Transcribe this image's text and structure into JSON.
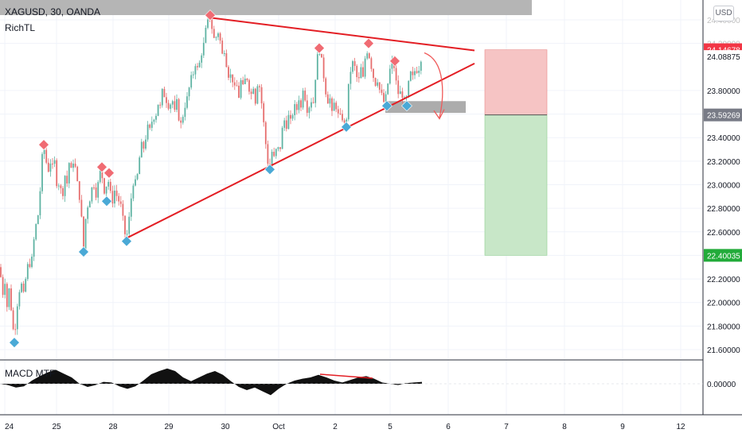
{
  "header": {
    "symbol": "XAGUSD, 30, OANDA",
    "indicator": "RichTL",
    "currency": "USD"
  },
  "macd_panel": {
    "label": "MACD MTF",
    "value_label": "0.00000"
  },
  "colors": {
    "bull": "#5fb3a3",
    "bear": "#e66e6e",
    "trendline": "#e31e24",
    "diamond_red": "#f06b73",
    "diamond_blue": "#4aa9d6",
    "zone_gray": "#9e9e9e",
    "stop_zone": "#f6c4c4",
    "target_zone": "#c8e7c8",
    "price_red": "#f23645",
    "price_gray": "#787b86",
    "price_green": "#22ab3a",
    "grid": "#f0f3fa"
  },
  "chart_data": {
    "type": "candlestick",
    "symbol": "XAGUSD",
    "timeframe": "30",
    "ylim": [
      21.45,
      24.55
    ],
    "y_ticks": [
      "24.40000",
      "24.20000",
      "23.80000",
      "23.60000",
      "23.40000",
      "23.20000",
      "23.00000",
      "22.80000",
      "22.60000",
      "22.40000",
      "22.20000",
      "22.00000",
      "21.80000",
      "21.60000"
    ],
    "x_ticks": [
      "24",
      "25",
      "28",
      "29",
      "30",
      "Oct",
      "2",
      "5",
      "6",
      "7",
      "8",
      "9",
      "12"
    ],
    "price_labels": [
      {
        "text": "24.14678",
        "value": 24.14678,
        "style": "red"
      },
      {
        "text": "24.08875",
        "value": 24.08875,
        "style": "plain"
      },
      {
        "text": "23.59269",
        "value": 23.59269,
        "style": "gray"
      },
      {
        "text": "22.40035",
        "value": 22.40035,
        "style": "green"
      }
    ],
    "price_path": [
      [
        0,
        22.3
      ],
      [
        3,
        22.05
      ],
      [
        6,
        22.2
      ],
      [
        9,
        21.95
      ],
      [
        12,
        22.15
      ],
      [
        15,
        21.85
      ],
      [
        18,
        21.7
      ],
      [
        21,
        21.95
      ],
      [
        24,
        22.1
      ],
      [
        27,
        22.15
      ],
      [
        30,
        22.05
      ],
      [
        33,
        22.25
      ],
      [
        36,
        22.35
      ],
      [
        39,
        22.3
      ],
      [
        42,
        22.5
      ],
      [
        45,
        22.65
      ],
      [
        48,
        22.75
      ],
      [
        51,
        23.0
      ],
      [
        54,
        23.35
      ],
      [
        57,
        23.25
      ],
      [
        60,
        23.1
      ],
      [
        63,
        23.2
      ],
      [
        66,
        23.15
      ],
      [
        69,
        23.2
      ],
      [
        72,
        22.95
      ],
      [
        75,
        23.05
      ],
      [
        78,
        22.85
      ],
      [
        81,
        23.1
      ],
      [
        84,
        23.0
      ],
      [
        87,
        23.2
      ],
      [
        90,
        23.1
      ],
      [
        93,
        23.25
      ],
      [
        96,
        23.05
      ],
      [
        99,
        22.95
      ],
      [
        102,
        22.75
      ],
      [
        105,
        22.45
      ],
      [
        108,
        22.75
      ],
      [
        111,
        22.85
      ],
      [
        114,
        22.9
      ],
      [
        117,
        23.05
      ],
      [
        120,
        22.9
      ],
      [
        123,
        23.0
      ],
      [
        126,
        23.12
      ],
      [
        129,
        23.05
      ],
      [
        132,
        22.9
      ],
      [
        135,
        23.08
      ],
      [
        138,
        22.95
      ],
      [
        141,
        22.85
      ],
      [
        144,
        22.95
      ],
      [
        147,
        22.9
      ],
      [
        150,
        22.85
      ],
      [
        153,
        22.8
      ],
      [
        156,
        22.6
      ],
      [
        159,
        22.55
      ],
      [
        162,
        22.7
      ],
      [
        165,
        22.9
      ],
      [
        168,
        23.05
      ],
      [
        171,
        23.0
      ],
      [
        174,
        23.15
      ],
      [
        177,
        23.35
      ],
      [
        180,
        23.3
      ],
      [
        183,
        23.4
      ],
      [
        186,
        23.5
      ],
      [
        189,
        23.45
      ],
      [
        192,
        23.6
      ],
      [
        195,
        23.55
      ],
      [
        198,
        23.7
      ],
      [
        201,
        23.65
      ],
      [
        204,
        23.8
      ],
      [
        207,
        23.75
      ],
      [
        210,
        23.7
      ],
      [
        213,
        23.65
      ],
      [
        216,
        23.75
      ],
      [
        219,
        23.6
      ],
      [
        222,
        23.7
      ],
      [
        225,
        23.55
      ],
      [
        228,
        23.5
      ],
      [
        231,
        23.65
      ],
      [
        234,
        23.7
      ],
      [
        237,
        23.8
      ],
      [
        240,
        23.9
      ],
      [
        243,
        23.95
      ],
      [
        246,
        24.05
      ],
      [
        249,
        23.95
      ],
      [
        252,
        24.1
      ],
      [
        255,
        24.15
      ],
      [
        258,
        24.3
      ],
      [
        261,
        24.38
      ],
      [
        264,
        24.42
      ],
      [
        267,
        24.3
      ],
      [
        270,
        24.2
      ],
      [
        273,
        24.32
      ],
      [
        276,
        24.25
      ],
      [
        279,
        24.1
      ],
      [
        282,
        24.15
      ],
      [
        285,
        24.0
      ],
      [
        288,
        23.9
      ],
      [
        291,
        23.95
      ],
      [
        294,
        23.8
      ],
      [
        297,
        23.85
      ],
      [
        300,
        23.75
      ],
      [
        303,
        23.9
      ],
      [
        306,
        23.8
      ],
      [
        309,
        23.95
      ],
      [
        312,
        23.85
      ],
      [
        315,
        23.75
      ],
      [
        318,
        23.85
      ],
      [
        321,
        23.7
      ],
      [
        324,
        23.9
      ],
      [
        327,
        23.8
      ],
      [
        330,
        23.6
      ],
      [
        333,
        23.4
      ],
      [
        336,
        23.2
      ],
      [
        339,
        23.15
      ],
      [
        342,
        23.3
      ],
      [
        345,
        23.2
      ],
      [
        348,
        23.35
      ],
      [
        351,
        23.25
      ],
      [
        354,
        23.45
      ],
      [
        357,
        23.55
      ],
      [
        360,
        23.5
      ],
      [
        363,
        23.6
      ],
      [
        366,
        23.5
      ],
      [
        369,
        23.7
      ],
      [
        372,
        23.6
      ],
      [
        375,
        23.75
      ],
      [
        378,
        23.65
      ],
      [
        381,
        23.85
      ],
      [
        384,
        23.7
      ],
      [
        387,
        23.6
      ],
      [
        390,
        23.75
      ],
      [
        393,
        23.65
      ],
      [
        396,
        23.9
      ],
      [
        399,
        24.1
      ],
      [
        402,
        24.15
      ],
      [
        405,
        24.0
      ],
      [
        408,
        23.85
      ],
      [
        411,
        23.7
      ],
      [
        414,
        23.75
      ],
      [
        417,
        23.6
      ],
      [
        420,
        23.7
      ],
      [
        423,
        23.65
      ],
      [
        426,
        23.55
      ],
      [
        429,
        23.6
      ],
      [
        432,
        23.5
      ],
      [
        435,
        23.55
      ],
      [
        438,
        23.85
      ],
      [
        441,
        24.0
      ],
      [
        444,
        24.05
      ],
      [
        447,
        23.95
      ],
      [
        450,
        23.85
      ],
      [
        453,
        24.0
      ],
      [
        456,
        23.9
      ],
      [
        459,
        24.1
      ],
      [
        462,
        24.15
      ],
      [
        465,
        24.05
      ],
      [
        468,
        23.95
      ],
      [
        471,
        23.85
      ],
      [
        474,
        23.9
      ],
      [
        477,
        23.8
      ],
      [
        480,
        23.75
      ],
      [
        483,
        23.68
      ],
      [
        486,
        23.8
      ],
      [
        489,
        23.95
      ],
      [
        492,
        24.05
      ],
      [
        495,
        24.0
      ],
      [
        498,
        23.85
      ],
      [
        501,
        23.75
      ],
      [
        504,
        23.8
      ],
      [
        507,
        23.72
      ],
      [
        510,
        23.7
      ],
      [
        513,
        23.85
      ],
      [
        516,
        23.95
      ],
      [
        519,
        23.9
      ],
      [
        522,
        24.0
      ],
      [
        525,
        23.95
      ],
      [
        528,
        24.05
      ],
      [
        531,
        24.14
      ]
    ],
    "markers": [
      {
        "type": "high",
        "x": 55,
        "y": 23.34
      },
      {
        "type": "low",
        "x": 18,
        "y": 21.66
      },
      {
        "type": "low",
        "x": 105,
        "y": 22.43
      },
      {
        "type": "high",
        "x": 128,
        "y": 23.15
      },
      {
        "type": "high",
        "x": 137,
        "y": 23.1
      },
      {
        "type": "low",
        "x": 134,
        "y": 22.86
      },
      {
        "type": "low",
        "x": 159,
        "y": 22.52
      },
      {
        "type": "high",
        "x": 264,
        "y": 24.44
      },
      {
        "type": "low",
        "x": 339,
        "y": 23.13
      },
      {
        "type": "high",
        "x": 401,
        "y": 24.16
      },
      {
        "type": "low",
        "x": 435,
        "y": 23.49
      },
      {
        "type": "high",
        "x": 463,
        "y": 24.2
      },
      {
        "type": "low",
        "x": 486,
        "y": 23.67
      },
      {
        "type": "high",
        "x": 496,
        "y": 24.05
      },
      {
        "type": "low",
        "x": 511,
        "y": 23.67
      }
    ],
    "macd": [
      [
        0,
        0.0
      ],
      [
        10,
        -0.02
      ],
      [
        20,
        -0.06
      ],
      [
        30,
        -0.04
      ],
      [
        40,
        0.05
      ],
      [
        50,
        0.12
      ],
      [
        60,
        0.18
      ],
      [
        70,
        0.22
      ],
      [
        80,
        0.16
      ],
      [
        90,
        0.1
      ],
      [
        100,
        0.0
      ],
      [
        110,
        -0.05
      ],
      [
        120,
        -0.02
      ],
      [
        130,
        0.03
      ],
      [
        140,
        0.02
      ],
      [
        150,
        -0.04
      ],
      [
        160,
        -0.08
      ],
      [
        170,
        -0.04
      ],
      [
        180,
        0.05
      ],
      [
        190,
        0.15
      ],
      [
        200,
        0.2
      ],
      [
        210,
        0.24
      ],
      [
        220,
        0.2
      ],
      [
        230,
        0.1
      ],
      [
        240,
        0.04
      ],
      [
        250,
        0.1
      ],
      [
        260,
        0.16
      ],
      [
        270,
        0.2
      ],
      [
        280,
        0.14
      ],
      [
        290,
        0.04
      ],
      [
        300,
        -0.05
      ],
      [
        310,
        -0.1
      ],
      [
        320,
        -0.06
      ],
      [
        330,
        -0.12
      ],
      [
        340,
        -0.18
      ],
      [
        350,
        -0.08
      ],
      [
        360,
        0.0
      ],
      [
        370,
        0.05
      ],
      [
        380,
        0.08
      ],
      [
        390,
        0.1
      ],
      [
        400,
        0.14
      ],
      [
        410,
        0.1
      ],
      [
        420,
        0.05
      ],
      [
        430,
        0.02
      ],
      [
        440,
        0.06
      ],
      [
        450,
        0.1
      ],
      [
        460,
        0.12
      ],
      [
        470,
        0.08
      ],
      [
        480,
        0.02
      ],
      [
        490,
        0.0
      ],
      [
        500,
        -0.02
      ],
      [
        510,
        0.01
      ],
      [
        520,
        0.02
      ],
      [
        530,
        0.03
      ]
    ]
  }
}
